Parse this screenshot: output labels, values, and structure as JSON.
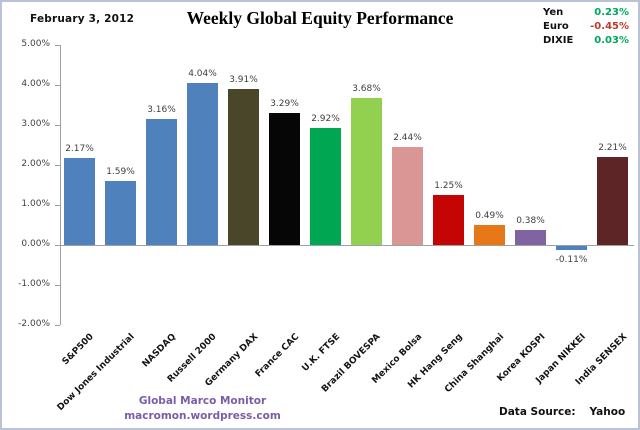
{
  "header": {
    "date": "February 3, 2012",
    "title": "Weekly Global Equity Performance"
  },
  "fx_panel": {
    "items": [
      {
        "label": "Yen",
        "value": "0.23%",
        "color": "#00a65e"
      },
      {
        "label": "Euro",
        "value": "-0.45%",
        "color": "#c0392b"
      },
      {
        "label": "DIXIE",
        "value": "0.03%",
        "color": "#00a65e"
      }
    ]
  },
  "chart_data": {
    "type": "bar",
    "title": "Weekly Global Equity Performance",
    "categories": [
      "S&P500",
      "Dow Jones Industrial",
      "NASDAQ",
      "Russell 2000",
      "Germany DAX",
      "France CAC",
      "U.K. FTSE",
      "Brazil BOVESPA",
      "Mexico Bolsa",
      "HK Hang Seng",
      "China Shanghai",
      "Korea KOSPI",
      "Japan NIKKEI",
      "India SENSEX"
    ],
    "values": [
      2.17,
      1.59,
      3.16,
      4.04,
      3.91,
      3.29,
      2.92,
      3.68,
      2.44,
      1.25,
      0.49,
      0.38,
      -0.11,
      2.21
    ],
    "value_labels": [
      "2.17%",
      "1.59%",
      "3.16%",
      "4.04%",
      "3.91%",
      "3.29%",
      "2.92%",
      "3.68%",
      "2.44%",
      "1.25%",
      "0.49%",
      "0.38%",
      "-0.11%",
      "2.21%"
    ],
    "bar_colors": [
      "#4f81bd",
      "#4f81bd",
      "#4f81bd",
      "#4f81bd",
      "#4a4629",
      "#060606",
      "#00a651",
      "#92d050",
      "#d99694",
      "#c50404",
      "#e67817",
      "#8064a2",
      "#4f81bd",
      "#5e2527"
    ],
    "xlabel": "",
    "ylabel": "",
    "ylim": [
      -2,
      5
    ],
    "ytick_values": [
      5,
      4,
      3,
      2,
      1,
      0,
      -1,
      -2
    ],
    "ytick_labels": [
      "5.00%",
      "4.00%",
      "3.00%",
      "2.00%",
      "1.00%",
      "0.00%",
      "-1.00%",
      "-2.00%"
    ],
    "grid": false,
    "legend_position": "none"
  },
  "footer": {
    "credit_line1": "Global Marco Monitor",
    "credit_line2": "macromon.wordpress.com",
    "source_label": "Data Source:",
    "source_value": "Yahoo"
  }
}
